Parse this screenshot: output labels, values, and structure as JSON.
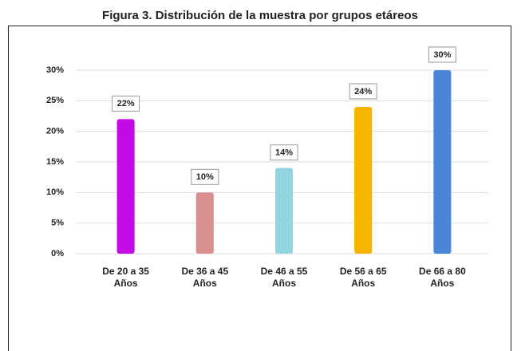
{
  "chart_data": {
    "type": "bar",
    "title": "Figura 3. Distribución de la muestra por grupos etáreos",
    "categories": [
      "De 20 a 35 Años",
      "De 36 a 45 Años",
      "De 46 a 55 Años",
      "De 56 a 65 Años",
      "De 66 a 80 Años"
    ],
    "values": [
      22,
      10,
      14,
      24,
      30
    ],
    "value_labels": [
      "22%",
      "10%",
      "14%",
      "24%",
      "30%"
    ],
    "colors": [
      "#c40ae6",
      "#d98f8f",
      "#93d4e2",
      "#f5b400",
      "#4a86d8"
    ],
    "ylim": [
      0,
      30
    ],
    "yticks": [
      {
        "value": 0,
        "label": "0%"
      },
      {
        "value": 5,
        "label": "5%"
      },
      {
        "value": 10,
        "label": "10%"
      },
      {
        "value": 15,
        "label": "15%"
      },
      {
        "value": 20,
        "label": "20%"
      },
      {
        "value": 25,
        "label": "25%"
      },
      {
        "value": 30,
        "label": "30%"
      }
    ],
    "grid": true
  }
}
